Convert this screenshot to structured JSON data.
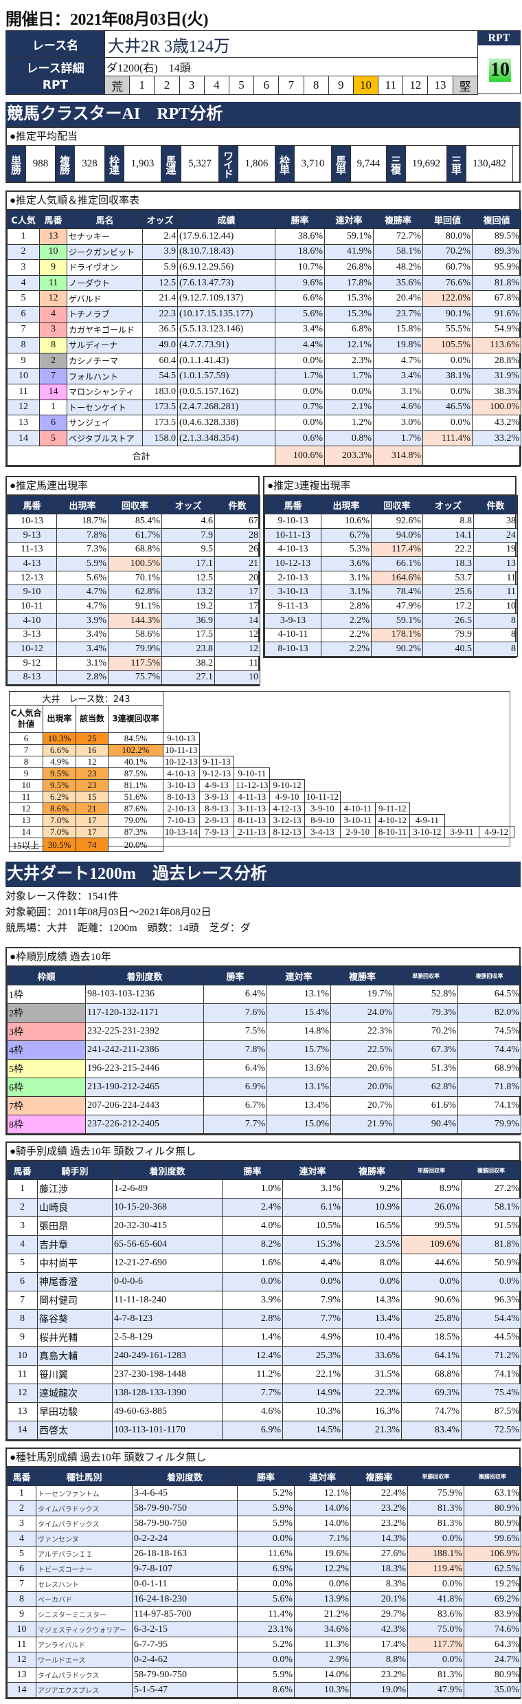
{
  "header": {
    "date_title": "開催日：2021年08月03日(火)"
  },
  "race": {
    "name_label": "レース名",
    "name": "大井2R 3歳124万",
    "detail_label": "レース詳細",
    "detail": "ダ1200(右)　14頭",
    "rpt_label": "RPT",
    "rpt_scale": [
      "荒",
      "1",
      "2",
      "3",
      "4",
      "5",
      "6",
      "7",
      "8",
      "9",
      "10",
      "11",
      "12",
      "13",
      "堅"
    ],
    "rpt_selected": "10",
    "rpt_box_label": "RPT",
    "rpt_value": "10"
  },
  "ai_section": {
    "title": "競馬クラスターAI　RPT分析"
  },
  "payout": {
    "title": "●推定平均配当",
    "items": [
      {
        "label": "単勝",
        "value": "988"
      },
      {
        "label": "複勝",
        "value": "328"
      },
      {
        "label": "枠連",
        "value": "1,903"
      },
      {
        "label": "馬連",
        "value": "5,327"
      },
      {
        "label": "ワイド",
        "value": "1,806"
      },
      {
        "label": "枠単",
        "value": "3,710"
      },
      {
        "label": "馬単",
        "value": "9,744"
      },
      {
        "label": "三複",
        "value": "19,692"
      },
      {
        "label": "三単",
        "value": "130,482"
      }
    ]
  },
  "popularity": {
    "title": "●推定人気順＆推定回収率表",
    "columns": [
      "C人気",
      "馬番",
      "馬名",
      "オッズ",
      "成績",
      "勝率",
      "連対率",
      "複勝率",
      "単回値",
      "複回値"
    ],
    "rows": [
      [
        "1",
        "13",
        "セナッキー",
        "2.4",
        "(17.9.6.12.44)",
        "38.6%",
        "59.1%",
        "72.7%",
        "80.0%",
        "89.5%"
      ],
      [
        "2",
        "10",
        "ジークガンビット",
        "3.9",
        "(8.10.7.18.43)",
        "18.6%",
        "41.9%",
        "58.1%",
        "70.2%",
        "89.3%"
      ],
      [
        "3",
        "9",
        "ドライヴオン",
        "5.9",
        "(6.9.12.29.56)",
        "10.7%",
        "26.8%",
        "48.2%",
        "60.7%",
        "95.9%"
      ],
      [
        "4",
        "11",
        "ノーダウト",
        "12.5",
        "(7.6.13.47.73)",
        "9.6%",
        "17.8%",
        "35.6%",
        "76.6%",
        "81.8%"
      ],
      [
        "5",
        "12",
        "ゲバルド",
        "21.4",
        "(9.12.7.109.137)",
        "6.6%",
        "15.3%",
        "20.4%",
        "122.0%",
        "67.8%"
      ],
      [
        "6",
        "4",
        "トチノラブ",
        "22.3",
        "(10.17.15.135.177)",
        "5.6%",
        "15.3%",
        "23.7%",
        "90.1%",
        "91.6%"
      ],
      [
        "7",
        "3",
        "カガヤキゴールド",
        "36.5",
        "(5.5.13.123.146)",
        "3.4%",
        "6.8%",
        "15.8%",
        "55.5%",
        "54.9%"
      ],
      [
        "8",
        "8",
        "サルディーナ",
        "49.0",
        "(4.7.7.73.91)",
        "4.4%",
        "12.1%",
        "19.8%",
        "105.5%",
        "113.6%"
      ],
      [
        "9",
        "2",
        "カシノチーマ",
        "60.4",
        "(0.1.1.41.43)",
        "0.0%",
        "2.3%",
        "4.7%",
        "0.0%",
        "28.8%"
      ],
      [
        "10",
        "7",
        "フォルハント",
        "54.5",
        "(1.0.1.57.59)",
        "1.7%",
        "1.7%",
        "3.4%",
        "38.1%",
        "31.9%"
      ],
      [
        "11",
        "14",
        "マロンシャンティ",
        "183.0",
        "(0.0.5.157.162)",
        "0.0%",
        "0.0%",
        "3.1%",
        "0.0%",
        "38.3%"
      ],
      [
        "12",
        "1",
        "トーセンケイト",
        "173.5",
        "(2.4.7.268.281)",
        "0.7%",
        "2.1%",
        "4.6%",
        "46.5%",
        "100.0%"
      ],
      [
        "13",
        "6",
        "サンジェイ",
        "173.5",
        "(0.4.6.328.338)",
        "0.0%",
        "1.2%",
        "3.0%",
        "0.0%",
        "43.2%"
      ],
      [
        "14",
        "5",
        "ベジタブルストア",
        "158.0",
        "(2.1.3.348.354)",
        "0.6%",
        "0.8%",
        "1.7%",
        "111.4%",
        "33.2%"
      ]
    ],
    "total_label": "合計",
    "totals": [
      "100.6%",
      "203.3%",
      "314.8%"
    ]
  },
  "umaren": {
    "title": "●推定馬連出現率",
    "columns": [
      "馬番",
      "出現率",
      "回収率",
      "オッズ",
      "件数"
    ],
    "rows": [
      [
        "10-13",
        "18.7%",
        "85.4%",
        "4.6",
        "67"
      ],
      [
        "9-13",
        "7.8%",
        "61.7%",
        "7.9",
        "28"
      ],
      [
        "11-13",
        "7.3%",
        "68.8%",
        "9.5",
        "26"
      ],
      [
        "4-13",
        "5.9%",
        "100.5%",
        "17.1",
        "21"
      ],
      [
        "12-13",
        "5.6%",
        "70.1%",
        "12.5",
        "20"
      ],
      [
        "9-10",
        "4.7%",
        "62.8%",
        "13.2",
        "17"
      ],
      [
        "10-11",
        "4.7%",
        "91.1%",
        "19.2",
        "17"
      ],
      [
        "4-10",
        "3.9%",
        "144.3%",
        "36.9",
        "14"
      ],
      [
        "3-13",
        "3.4%",
        "58.6%",
        "17.5",
        "12"
      ],
      [
        "10-12",
        "3.4%",
        "79.9%",
        "23.8",
        "12"
      ],
      [
        "9-12",
        "3.1%",
        "117.5%",
        "38.2",
        "11"
      ],
      [
        "8-13",
        "2.8%",
        "75.7%",
        "27.1",
        "10"
      ]
    ]
  },
  "sanrenpuku": {
    "title": "●推定3連複出現率",
    "columns": [
      "馬番",
      "出現率",
      "回収率",
      "オッズ",
      "件数"
    ],
    "rows": [
      [
        "9-10-13",
        "10.6%",
        "92.6%",
        "8.8",
        "38"
      ],
      [
        "10-11-13",
        "6.7%",
        "94.0%",
        "14.1",
        "24"
      ],
      [
        "4-10-13",
        "5.3%",
        "117.4%",
        "22.2",
        "19"
      ],
      [
        "10-12-13",
        "3.6%",
        "66.1%",
        "18.3",
        "13"
      ],
      [
        "2-10-13",
        "3.1%",
        "164.6%",
        "53.7",
        "11"
      ],
      [
        "3-10-13",
        "3.1%",
        "78.4%",
        "25.6",
        "11"
      ],
      [
        "9-11-13",
        "2.8%",
        "47.9%",
        "17.2",
        "10"
      ],
      [
        "3-9-13",
        "2.2%",
        "59.1%",
        "26.5",
        "8"
      ],
      [
        "4-10-11",
        "2.2%",
        "178.1%",
        "79.9",
        "8"
      ],
      [
        "8-10-13",
        "2.2%",
        "90.2%",
        "40.5",
        "8"
      ]
    ]
  },
  "cluster": {
    "title": "大井　レース数：243",
    "columns": [
      "C人気合計値",
      "出現率",
      "該当数",
      "3連複回収率"
    ],
    "rows": [
      {
        "sum": "6",
        "rate": "10.3%",
        "count": "25",
        "recovery": "84.5%",
        "combos": [
          "9-10-13"
        ]
      },
      {
        "sum": "7",
        "rate": "6.6%",
        "count": "16",
        "recovery": "102.2%",
        "combos": [
          "10-11-13"
        ]
      },
      {
        "sum": "8",
        "rate": "4.9%",
        "count": "12",
        "recovery": "40.1%",
        "combos": [
          "10-12-13",
          "9-11-13"
        ]
      },
      {
        "sum": "9",
        "rate": "9.5%",
        "count": "23",
        "recovery": "87.5%",
        "combos": [
          "4-10-13",
          "9-12-13",
          "9-10-11"
        ]
      },
      {
        "sum": "10",
        "rate": "9.5%",
        "count": "23",
        "recovery": "81.1%",
        "combos": [
          "3-10-13",
          "4-9-13",
          "11-12-13",
          "9-10-12"
        ]
      },
      {
        "sum": "11",
        "rate": "6.2%",
        "count": "15",
        "recovery": "51.6%",
        "combos": [
          "8-10-13",
          "3-9-13",
          "4-11-13",
          "4-9-10",
          "10-11-12"
        ]
      },
      {
        "sum": "12",
        "rate": "8.6%",
        "count": "21",
        "recovery": "87.6%",
        "combos": [
          "2-10-13",
          "8-9-13",
          "3-11-13",
          "4-12-13",
          "3-9-10",
          "4-10-11",
          "9-11-12"
        ]
      },
      {
        "sum": "13",
        "rate": "7.0%",
        "count": "17",
        "recovery": "79.0%",
        "combos": [
          "7-10-13",
          "2-9-13",
          "8-11-13",
          "3-12-13",
          "8-9-10",
          "3-10-11",
          "4-10-12",
          "4-9-11"
        ]
      },
      {
        "sum": "14",
        "rate": "7.0%",
        "count": "17",
        "recovery": "87.3%",
        "combos": [
          "10-13-14",
          "7-9-13",
          "2-11-13",
          "8-12-13",
          "3-4-13",
          "2-9-10",
          "8-10-11",
          "3-10-12",
          "3-9-11",
          "4-9-12"
        ]
      },
      {
        "sum": "15以上",
        "rate": "30.5%",
        "count": "74",
        "recovery": "20.0%",
        "combos": []
      }
    ]
  },
  "past": {
    "title": "大井ダート1200m　過去レース分析",
    "lines": [
      "対象レース件数：1541件",
      "対象範囲：2011年08月03日～2021年08月02日",
      "競馬場：大井　距離：1200m　頭数：14頭　芝ダ：ダ"
    ]
  },
  "frame": {
    "title": "●枠順別成績 過去10年",
    "columns": [
      "枠順",
      "着別度数",
      "勝率",
      "連対率",
      "複勝率",
      "単勝回収率",
      "複勝回収率"
    ],
    "rows": [
      [
        "1枠",
        "98-103-103-1236",
        "6.4%",
        "13.1%",
        "19.7%",
        "52.8%",
        "64.5%"
      ],
      [
        "2枠",
        "117-120-132-1171",
        "7.6%",
        "15.4%",
        "24.0%",
        "79.3%",
        "82.0%"
      ],
      [
        "3枠",
        "232-225-231-2392",
        "7.5%",
        "14.8%",
        "22.3%",
        "70.2%",
        "74.5%"
      ],
      [
        "4枠",
        "241-242-211-2386",
        "7.8%",
        "15.7%",
        "22.5%",
        "67.3%",
        "74.4%"
      ],
      [
        "5枠",
        "196-223-215-2446",
        "6.4%",
        "13.6%",
        "20.6%",
        "51.3%",
        "68.9%"
      ],
      [
        "6枠",
        "213-190-212-2465",
        "6.9%",
        "13.1%",
        "20.0%",
        "62.8%",
        "71.8%"
      ],
      [
        "7枠",
        "207-206-224-2443",
        "6.7%",
        "13.4%",
        "20.7%",
        "61.6%",
        "74.1%"
      ],
      [
        "8枠",
        "237-226-212-2405",
        "7.7%",
        "15.0%",
        "21.9%",
        "90.4%",
        "79.9%"
      ]
    ]
  },
  "jockey": {
    "title": "●騎手別成績 過去10年 頭数フィルタ無し",
    "columns": [
      "馬番",
      "騎手別",
      "着別度数",
      "勝率",
      "連対率",
      "複勝率",
      "単勝回収率",
      "複勝回収率"
    ],
    "rows": [
      [
        "1",
        "藤江渉",
        "1-2-6-89",
        "1.0%",
        "3.1%",
        "9.2%",
        "8.9%",
        "27.2%"
      ],
      [
        "2",
        "山崎良",
        "10-15-20-368",
        "2.4%",
        "6.1%",
        "10.9%",
        "26.0%",
        "58.1%"
      ],
      [
        "3",
        "張田昂",
        "20-32-30-415",
        "4.0%",
        "10.5%",
        "16.5%",
        "99.5%",
        "91.5%"
      ],
      [
        "4",
        "吉井章",
        "65-56-65-604",
        "8.2%",
        "15.3%",
        "23.5%",
        "109.6%",
        "81.8%"
      ],
      [
        "5",
        "中村尚平",
        "12-21-27-690",
        "1.6%",
        "4.4%",
        "8.0%",
        "44.6%",
        "50.9%"
      ],
      [
        "6",
        "神尾香澄",
        "0-0-0-6",
        "0.0%",
        "0.0%",
        "0.0%",
        "0.0%",
        "0.0%"
      ],
      [
        "7",
        "岡村健司",
        "11-11-18-240",
        "3.9%",
        "7.9%",
        "14.3%",
        "90.6%",
        "96.3%"
      ],
      [
        "8",
        "篠谷葵",
        "4-7-8-123",
        "2.8%",
        "7.7%",
        "13.4%",
        "25.8%",
        "54.4%"
      ],
      [
        "9",
        "桜井光輔",
        "2-5-8-129",
        "1.4%",
        "4.9%",
        "10.4%",
        "18.5%",
        "44.5%"
      ],
      [
        "10",
        "真島大輔",
        "240-249-161-1283",
        "12.4%",
        "25.3%",
        "33.6%",
        "64.1%",
        "71.2%"
      ],
      [
        "11",
        "笹川翼",
        "237-230-198-1448",
        "11.2%",
        "22.1%",
        "31.5%",
        "68.8%",
        "74.1%"
      ],
      [
        "12",
        "達城龍次",
        "138-128-133-1390",
        "7.7%",
        "14.9%",
        "22.3%",
        "69.3%",
        "75.4%"
      ],
      [
        "13",
        "早田功駿",
        "49-60-63-885",
        "4.6%",
        "10.3%",
        "16.3%",
        "74.7%",
        "87.5%"
      ],
      [
        "14",
        "西啓太",
        "103-113-101-1170",
        "6.9%",
        "14.5%",
        "21.3%",
        "83.4%",
        "72.5%"
      ]
    ]
  },
  "sire": {
    "title": "●種牡馬別成績 過去10年 頭数フィルタ無し",
    "columns": [
      "馬番",
      "種牡馬別",
      "着別度数",
      "勝率",
      "連対率",
      "複勝率",
      "単勝回収率",
      "複勝回収率"
    ],
    "rows": [
      [
        "1",
        "トーセンファントム",
        "3-4-6-45",
        "5.2%",
        "12.1%",
        "22.4%",
        "75.9%",
        "63.1%"
      ],
      [
        "2",
        "タイムパラドックス",
        "58-79-90-750",
        "5.9%",
        "14.0%",
        "23.2%",
        "81.3%",
        "80.9%"
      ],
      [
        "3",
        "タイムパラドックス",
        "58-79-90-750",
        "5.9%",
        "14.0%",
        "23.2%",
        "81.3%",
        "80.9%"
      ],
      [
        "4",
        "ヴァンセンヌ",
        "0-2-2-24",
        "0.0%",
        "7.1%",
        "14.3%",
        "0.0%",
        "99.6%"
      ],
      [
        "5",
        "アルデバランＩＩ",
        "26-18-18-163",
        "11.6%",
        "19.6%",
        "27.6%",
        "188.1%",
        "106.9%"
      ],
      [
        "6",
        "トビーズコーナー",
        "9-7-8-107",
        "6.9%",
        "12.2%",
        "18.3%",
        "119.4%",
        "62.5%"
      ],
      [
        "7",
        "セレスハント",
        "0-0-1-11",
        "0.0%",
        "0.0%",
        "8.3%",
        "0.0%",
        "19.2%"
      ],
      [
        "8",
        "ベーカバド",
        "16-24-18-230",
        "5.6%",
        "13.9%",
        "20.1%",
        "41.8%",
        "69.2%"
      ],
      [
        "9",
        "シニスターミニスター",
        "114-97-85-700",
        "11.4%",
        "21.2%",
        "29.7%",
        "83.6%",
        "83.9%"
      ],
      [
        "10",
        "マジェスティックウォリアー",
        "6-3-2-15",
        "23.1%",
        "34.6%",
        "42.3%",
        "75.0%",
        "74.6%"
      ],
      [
        "11",
        "アンライバルド",
        "6-7-7-95",
        "5.2%",
        "11.3%",
        "17.4%",
        "117.7%",
        "64.3%"
      ],
      [
        "12",
        "ワールドエース",
        "0-2-4-62",
        "0.0%",
        "2.9%",
        "8.8%",
        "0.0%",
        "24.7%"
      ],
      [
        "13",
        "タイムパラドックス",
        "58-79-90-750",
        "5.9%",
        "14.0%",
        "23.2%",
        "81.3%",
        "80.9%"
      ],
      [
        "14",
        "アジアエクスプレス",
        "5-1-5-47",
        "8.6%",
        "10.3%",
        "19.0%",
        "47.9%",
        "35.0%"
      ]
    ]
  },
  "colors": {
    "navy": "#21365f",
    "row_alt": "#dfe9fb",
    "highlight": "#fde0d2",
    "rpt_selected": "#ffc000",
    "rpt_end": "#d0d0d0",
    "heat_high": "#f7901e",
    "heat_mid": "#f9aa4d",
    "heat_low": "#fdddb2",
    "frames": [
      "#ffffff",
      "#b0b0b0",
      "#ffb0b0",
      "#b0b0ff",
      "#ffffb0",
      "#b0ffb0",
      "#ffcfb0",
      "#ffb0ff"
    ]
  }
}
